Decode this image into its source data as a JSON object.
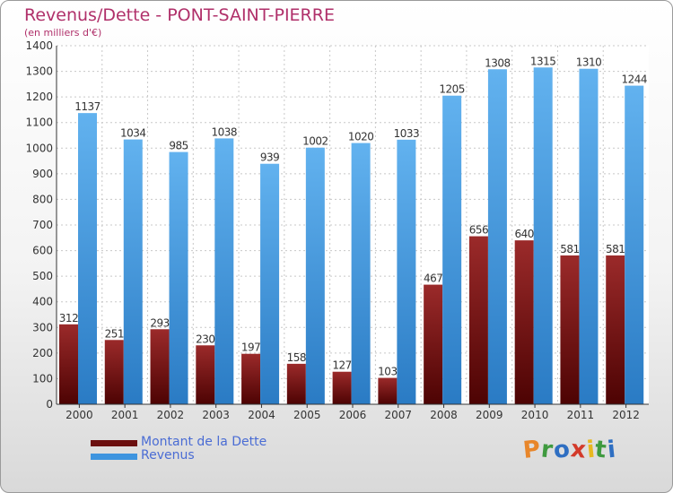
{
  "header": {
    "title": "Revenus/Dette - PONT-SAINT-PIERRE",
    "subtitle": "(en milliers d'€)"
  },
  "chart_data": {
    "type": "bar",
    "title": "Revenus/Dette - PONT-SAINT-PIERRE",
    "ylabel": "(en milliers d'€)",
    "ylim": [
      0,
      1400
    ],
    "yticks": [
      0,
      100,
      200,
      300,
      400,
      500,
      600,
      700,
      800,
      900,
      1000,
      1100,
      1200,
      1300,
      1400
    ],
    "grid": true,
    "legend_position": "bottom-left",
    "categories": [
      "2000",
      "2001",
      "2002",
      "2003",
      "2004",
      "2005",
      "2006",
      "2007",
      "2008",
      "2009",
      "2010",
      "2011",
      "2012"
    ],
    "series": [
      {
        "name": "Montant de la Dette",
        "color": "#7a1616",
        "values": [
          312,
          251,
          293,
          230,
          197,
          158,
          127,
          103,
          467,
          656,
          640,
          581,
          581
        ]
      },
      {
        "name": "Revenus",
        "color": "#3d94df",
        "values": [
          1137,
          1034,
          985,
          1038,
          939,
          1002,
          1020,
          1033,
          1205,
          1308,
          1315,
          1310,
          1244
        ]
      }
    ]
  },
  "legend": {
    "items": [
      {
        "label": "Montant de la Dette",
        "color": "#6b0f0f"
      },
      {
        "label": "Revenus",
        "color": "#3d94df"
      }
    ]
  },
  "logo": {
    "letters": [
      "P",
      "r",
      "o",
      "x",
      "i",
      "t",
      "i"
    ],
    "colors": [
      "#e8862a",
      "#3f9a3f",
      "#2f6fc2",
      "#d33a2a",
      "#e8b820",
      "#3f9a3f",
      "#2f6fc2"
    ]
  }
}
